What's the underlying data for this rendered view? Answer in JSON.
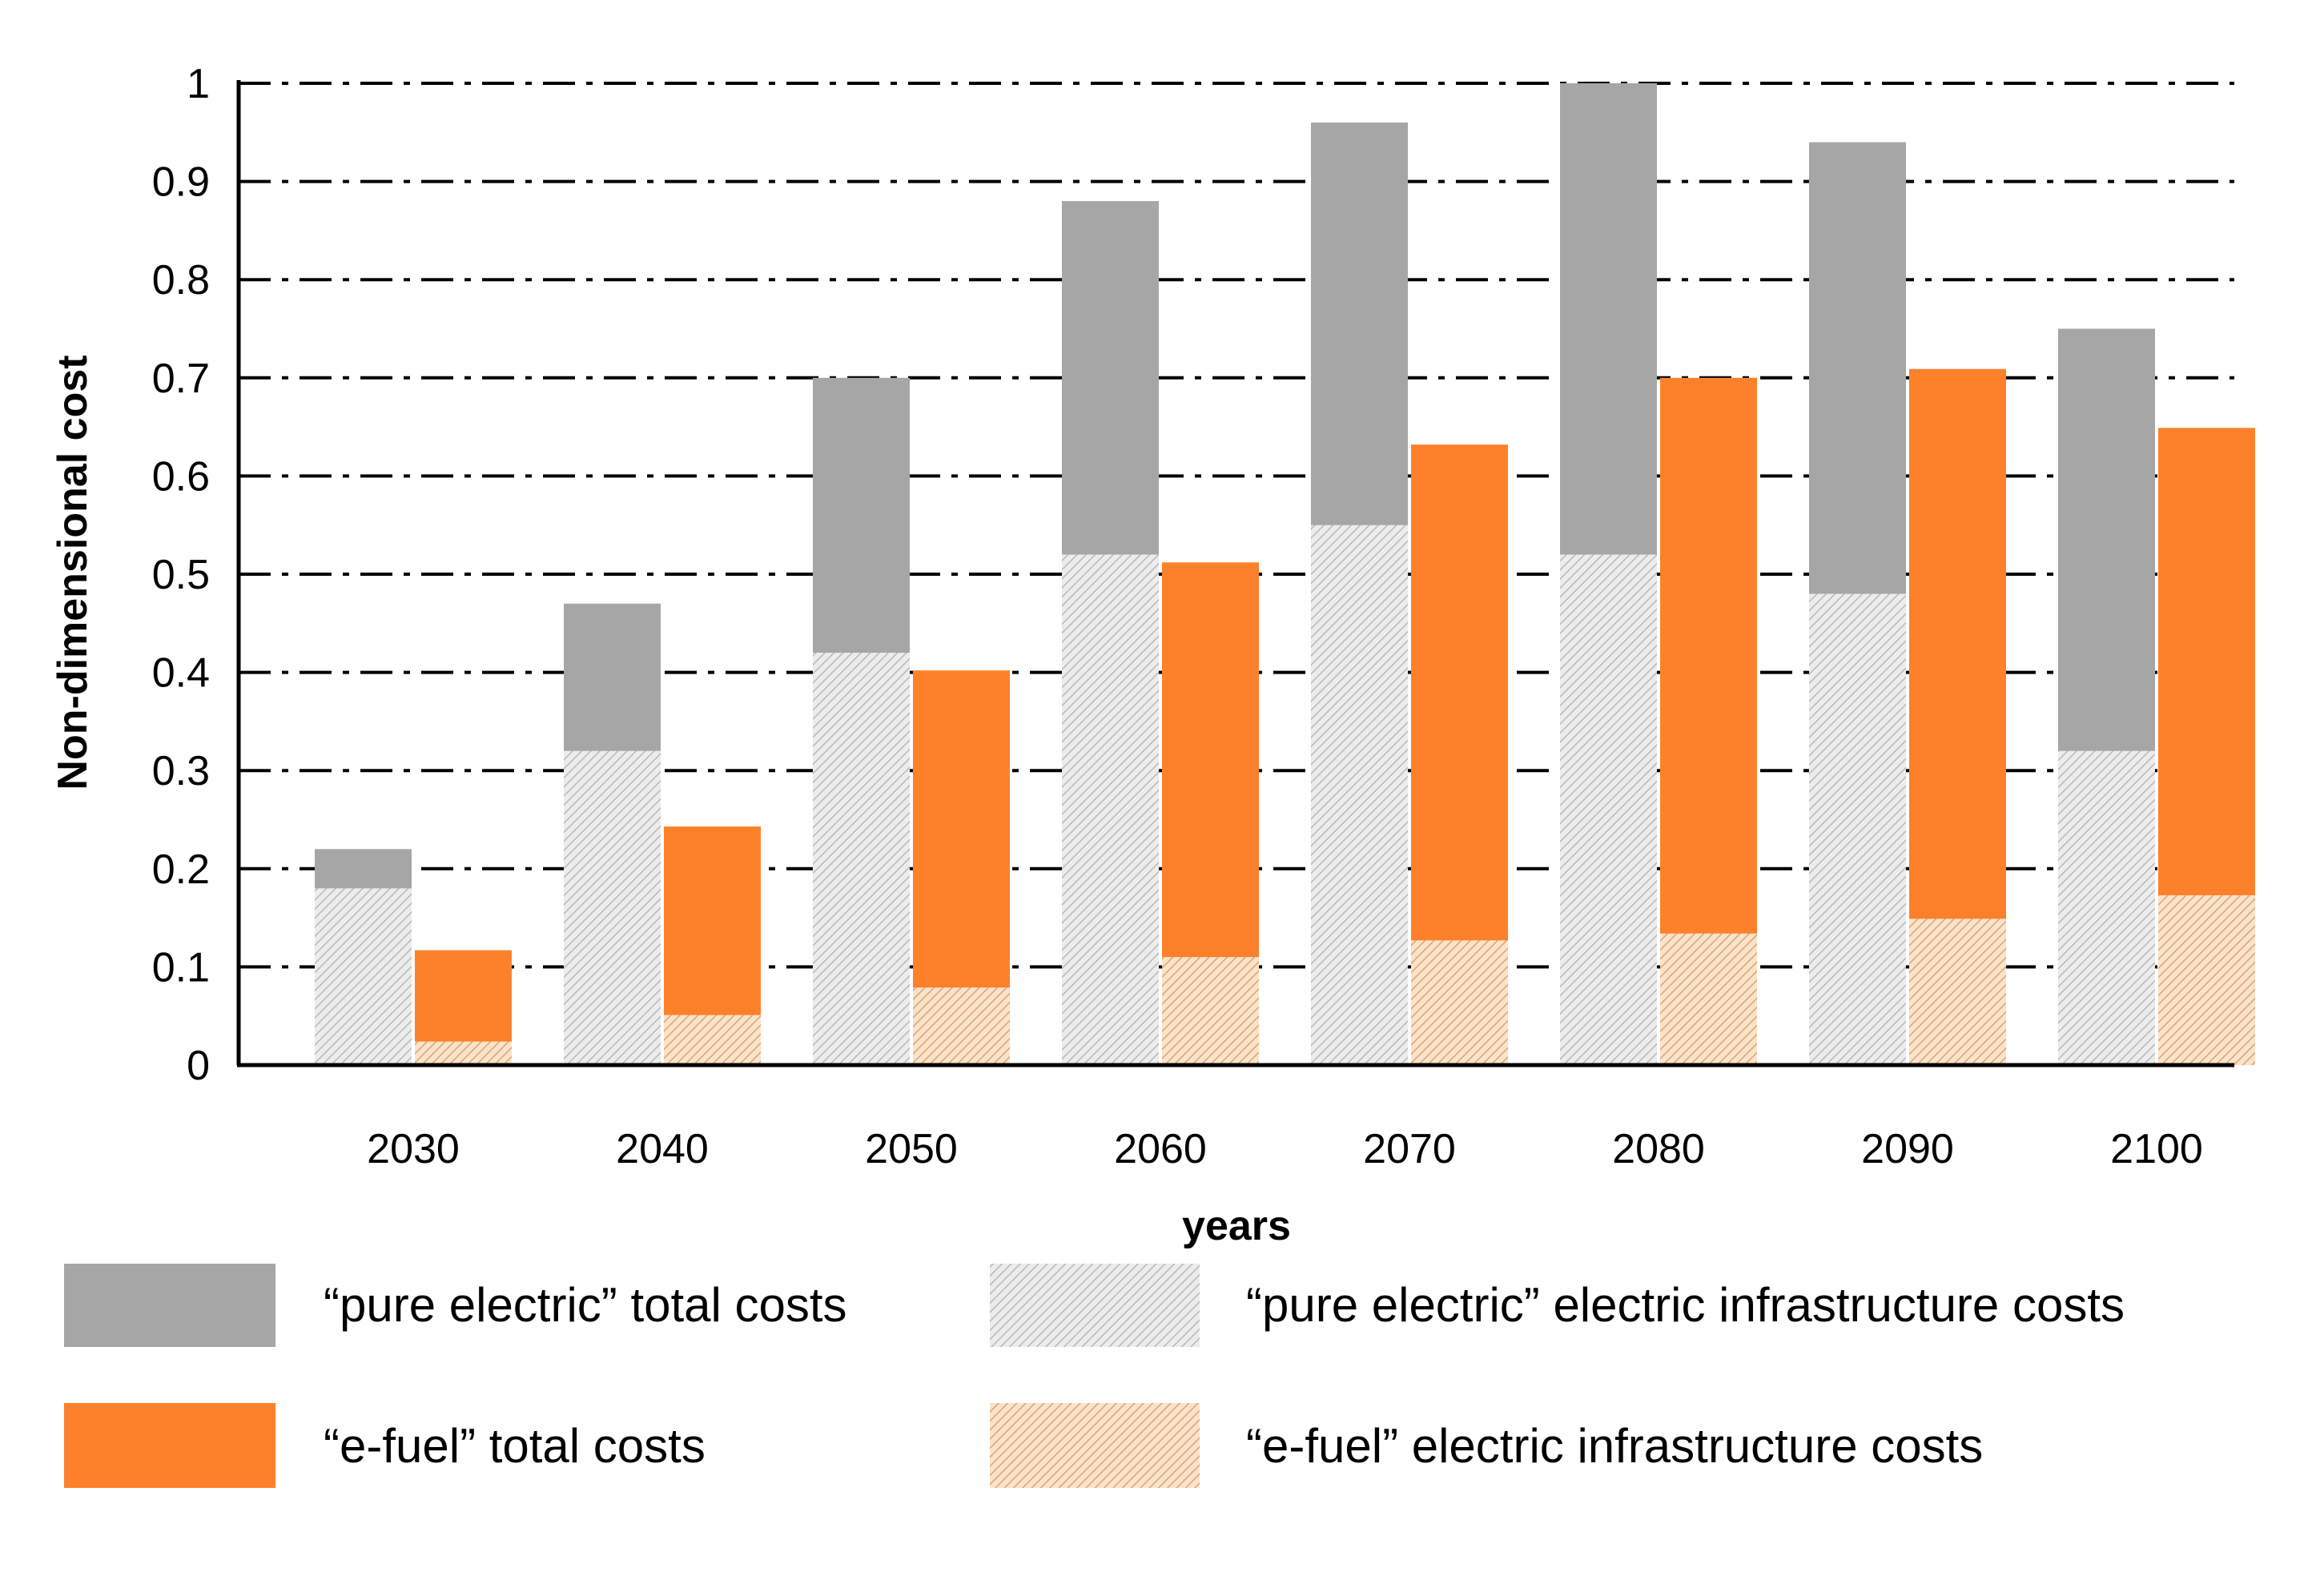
{
  "chart_data": {
    "type": "bar",
    "title": "",
    "xlabel": "years",
    "ylabel": "Non-dimensional cost",
    "ylim": [
      0,
      1
    ],
    "yticks": [
      "0",
      "0.1",
      "0.2",
      "0.3",
      "0.4",
      "0.5",
      "0.6",
      "0.7",
      "0.8",
      "0.9",
      "1"
    ],
    "grid": true,
    "legend_position": "bottom",
    "categories": [
      "2030",
      "2040",
      "2050",
      "2060",
      "2070",
      "2080",
      "2090",
      "2100"
    ],
    "series": [
      {
        "name": "“pure electric” total costs",
        "color": "#a6a6a6",
        "values": [
          0.22,
          0.47,
          0.7,
          0.88,
          0.96,
          1.0,
          0.94,
          0.75
        ]
      },
      {
        "name": "“pure electric” electric infrastructure costs",
        "color": "#d9d9d9",
        "values": [
          0.18,
          0.32,
          0.42,
          0.52,
          0.55,
          0.52,
          0.48,
          0.32
        ]
      },
      {
        "name": "“e-fuel” total costs",
        "color": "#fd812b",
        "values": [
          0.117,
          0.243,
          0.402,
          0.512,
          0.632,
          0.7,
          0.709,
          0.649
        ]
      },
      {
        "name": "“e-fuel” electric infrastructure costs",
        "color": "#f4caa4",
        "values": [
          0.024,
          0.051,
          0.079,
          0.11,
          0.127,
          0.134,
          0.149,
          0.173
        ]
      }
    ]
  }
}
